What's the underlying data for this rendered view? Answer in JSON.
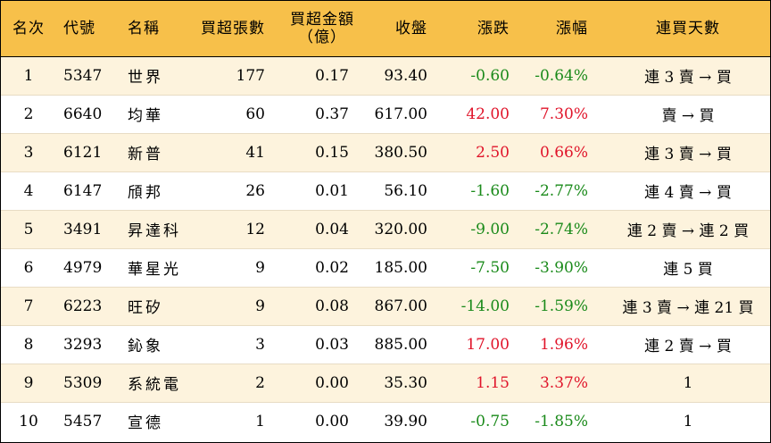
{
  "headers": {
    "rank": "名次",
    "code": "代號",
    "name": "名稱",
    "net_buy_lots": "買超張數",
    "net_buy_amount": "買超金額",
    "net_buy_amount_unit": "（億）",
    "close": "收盤",
    "change": "漲跌",
    "change_pct": "漲幅",
    "buy_days": "連買天數"
  },
  "rows": [
    {
      "rank": "1",
      "code": "5347",
      "name": "世界",
      "lots": "177",
      "amount": "0.17",
      "close": "93.40",
      "change": "-0.60",
      "pct": "-0.64%",
      "days": "連 3 賣 → 買"
    },
    {
      "rank": "2",
      "code": "6640",
      "name": "均華",
      "lots": "60",
      "amount": "0.37",
      "close": "617.00",
      "change": "42.00",
      "pct": "7.30%",
      "days": "賣 → 買"
    },
    {
      "rank": "3",
      "code": "6121",
      "name": "新普",
      "lots": "41",
      "amount": "0.15",
      "close": "380.50",
      "change": "2.50",
      "pct": "0.66%",
      "days": "連 3 賣 → 買"
    },
    {
      "rank": "4",
      "code": "6147",
      "name": "頎邦",
      "lots": "26",
      "amount": "0.01",
      "close": "56.10",
      "change": "-1.60",
      "pct": "-2.77%",
      "days": "連 4 賣 → 買"
    },
    {
      "rank": "5",
      "code": "3491",
      "name": "昇達科",
      "lots": "12",
      "amount": "0.04",
      "close": "320.00",
      "change": "-9.00",
      "pct": "-2.74%",
      "days": "連 2 賣 → 連 2 買"
    },
    {
      "rank": "6",
      "code": "4979",
      "name": "華星光",
      "lots": "9",
      "amount": "0.02",
      "close": "185.00",
      "change": "-7.50",
      "pct": "-3.90%",
      "days": "連 5 買"
    },
    {
      "rank": "7",
      "code": "6223",
      "name": "旺矽",
      "lots": "9",
      "amount": "0.08",
      "close": "867.00",
      "change": "-14.00",
      "pct": "-1.59%",
      "days": "連 3 賣 → 連 21 買"
    },
    {
      "rank": "8",
      "code": "3293",
      "name": "鈊象",
      "lots": "3",
      "amount": "0.03",
      "close": "885.00",
      "change": "17.00",
      "pct": "1.96%",
      "days": "連 2 賣 → 買"
    },
    {
      "rank": "9",
      "code": "5309",
      "name": "系統電",
      "lots": "2",
      "amount": "0.00",
      "close": "35.30",
      "change": "1.15",
      "pct": "3.37%",
      "days": "1"
    },
    {
      "rank": "10",
      "code": "5457",
      "name": "宣德",
      "lots": "1",
      "amount": "0.00",
      "close": "39.90",
      "change": "-0.75",
      "pct": "-1.85%",
      "days": "1"
    }
  ],
  "colors": {
    "header_bg": "#f7c04a",
    "alt_row_bg": "#fdf3dd",
    "up": "#e0142a",
    "down": "#1a8a1a"
  }
}
